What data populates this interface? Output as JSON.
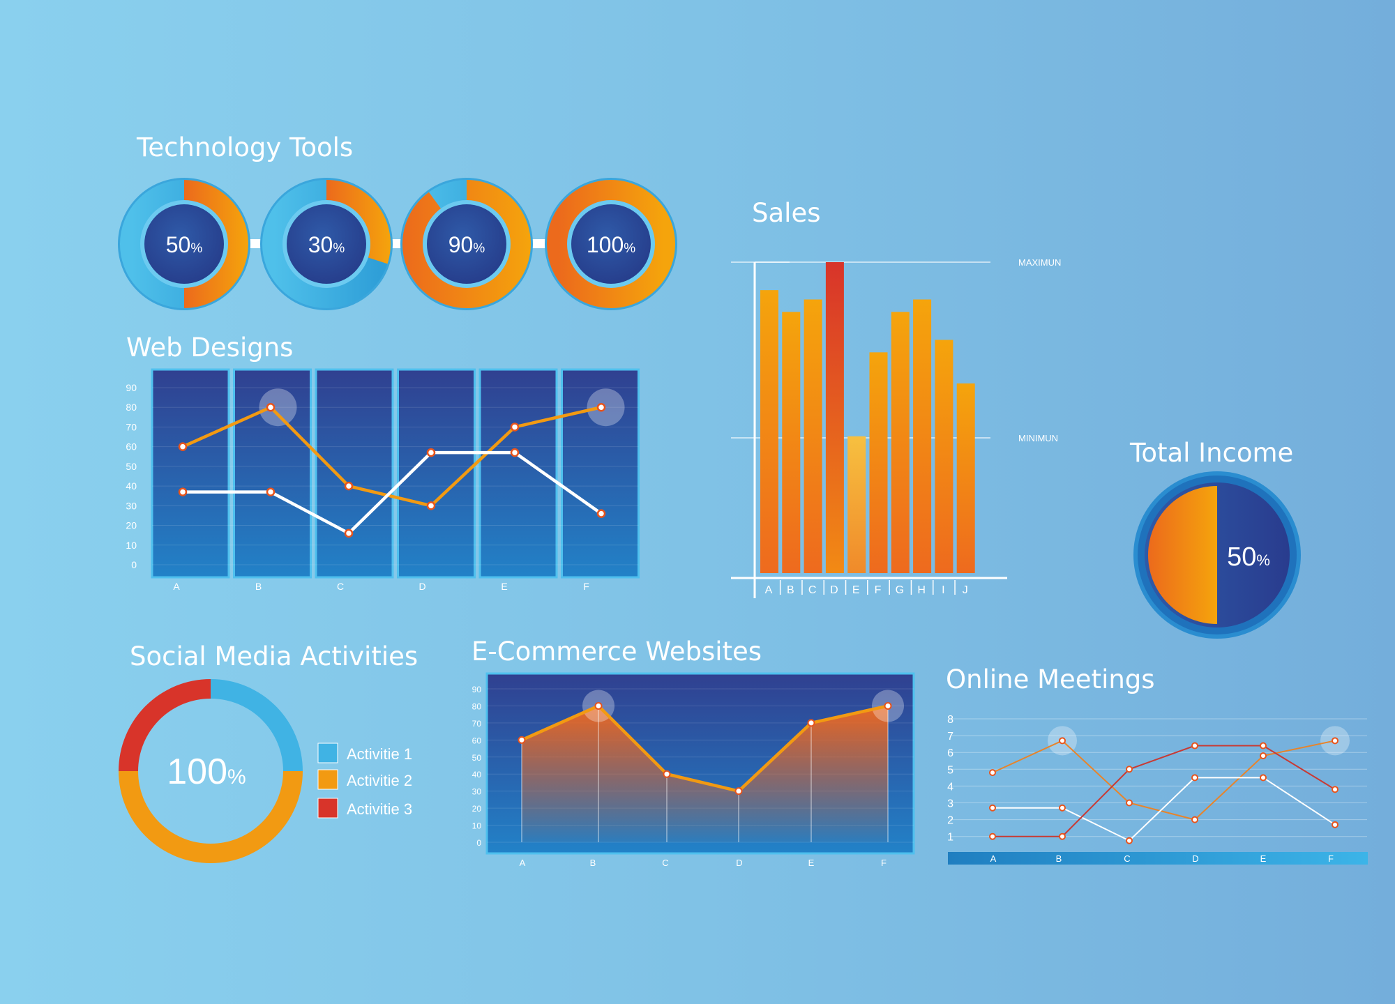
{
  "colors": {
    "background": "#82c6ea",
    "navy": "#2e4592",
    "cyan": "#40b3e4",
    "orange": "#f29a12",
    "orange_dark": "#ec6a1c",
    "red": "#d8342a",
    "white": "#ffffff"
  },
  "titles": {
    "technology_tools": "Technology Tools",
    "web_designs": "Web Designs",
    "sales": "Sales",
    "total_income": "Total Income",
    "social_media": "Social Media Activities",
    "ecommerce": "E-Commerce Websites",
    "online_meetings": "Online Meetings"
  },
  "chart_data": [
    {
      "id": "technology_tools",
      "type": "pie",
      "title": "Technology Tools",
      "values": [
        50,
        30,
        90,
        100
      ],
      "labels": [
        "50%",
        "30%",
        "90%",
        "100%"
      ],
      "label_parts": [
        {
          "num": "50",
          "unit": "%"
        },
        {
          "num": "30",
          "unit": "%"
        },
        {
          "num": "90",
          "unit": "%"
        },
        {
          "num": "100",
          "unit": "%"
        }
      ]
    },
    {
      "id": "web_designs",
      "type": "line",
      "title": "Web Designs",
      "categories": [
        "A",
        "B",
        "C",
        "D",
        "E",
        "F"
      ],
      "y_ticks": [
        "90",
        "80",
        "70",
        "60",
        "50",
        "40",
        "30",
        "20",
        "10",
        "0"
      ],
      "ylim": [
        0,
        90
      ],
      "series": [
        {
          "values": [
            60,
            80,
            40,
            30,
            70,
            80
          ],
          "color": "#f29a12"
        },
        {
          "values": [
            37,
            37,
            16,
            57,
            57,
            26
          ],
          "color": "#ffffff"
        }
      ],
      "highlighted": [
        1,
        5
      ]
    },
    {
      "id": "sales",
      "type": "bar",
      "title": "Sales",
      "categories": [
        "A",
        "B",
        "C",
        "D",
        "E",
        "F",
        "G",
        "H",
        "I",
        "J"
      ],
      "values": [
        91,
        84,
        88,
        100,
        44,
        71,
        84,
        88,
        75,
        61
      ],
      "ylim": [
        0,
        100
      ],
      "reference_lines": [
        {
          "label": "MAXIMUN",
          "value": 100
        },
        {
          "label": "MINIMUN",
          "value": 44
        }
      ],
      "colors": {
        "highlight_max": "#d8342a",
        "highlight_min": "#f7c040"
      }
    },
    {
      "id": "total_income",
      "type": "pie",
      "title": "Total Income",
      "values": [
        50,
        50
      ],
      "label_parts": {
        "num": "50",
        "unit": "%"
      }
    },
    {
      "id": "social_media",
      "type": "pie",
      "title": "Social Media Activities",
      "values": [
        25,
        50,
        25
      ],
      "series_colors": [
        "#40b3e4",
        "#f29a12",
        "#d8342a"
      ],
      "label_parts": {
        "num": "100",
        "unit": "%"
      },
      "legend": [
        "Activitie 1",
        "Activitie 2",
        "Activitie 3"
      ]
    },
    {
      "id": "ecommerce",
      "type": "area",
      "title": "E-Commerce Websites",
      "categories": [
        "A",
        "B",
        "C",
        "D",
        "E",
        "F"
      ],
      "y_ticks": [
        "90",
        "80",
        "70",
        "60",
        "50",
        "40",
        "30",
        "20",
        "10",
        "0"
      ],
      "ylim": [
        0,
        90
      ],
      "values": [
        60,
        80,
        40,
        30,
        70,
        80
      ],
      "highlighted": [
        1,
        5
      ]
    },
    {
      "id": "online_meetings",
      "type": "line",
      "title": "Online Meetings",
      "categories": [
        "A",
        "B",
        "C",
        "D",
        "E",
        "F"
      ],
      "y_ticks": [
        "8",
        "7",
        "6",
        "5",
        "4",
        "3",
        "2",
        "1"
      ],
      "ylim": [
        0,
        8
      ],
      "series": [
        {
          "values": [
            4.8,
            6.7,
            3.0,
            2.0,
            5.8,
            6.7
          ],
          "color": "#e8842a"
        },
        {
          "values": [
            2.7,
            2.7,
            0.75,
            4.5,
            4.5,
            1.7
          ],
          "color": "#ffffff"
        },
        {
          "values": [
            1.0,
            1.0,
            5.0,
            6.4,
            6.4,
            3.8
          ],
          "color": "#c83a34"
        }
      ],
      "highlighted": [
        1,
        5
      ]
    }
  ]
}
